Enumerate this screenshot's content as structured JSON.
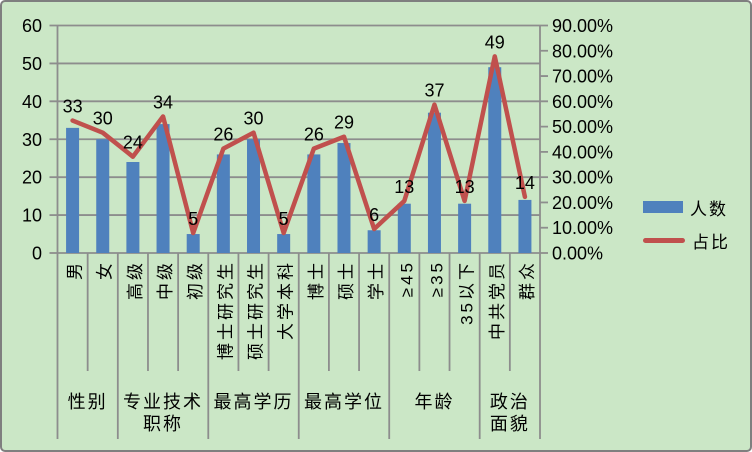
{
  "figure": {
    "colors": {
      "background": "#CBE7C6",
      "border": "#7F7F7F",
      "grid": "#8D8D8D",
      "axis": "#8D8D8D",
      "text": "#000000",
      "bar": "#4F81BD",
      "line": "#C0504D"
    }
  },
  "chart_data": {
    "type": "bar",
    "subtype": "bar+line-combo",
    "title": "",
    "xlabel": "",
    "ylabel": "",
    "grid": true,
    "categories": [
      "男",
      "女",
      "高级",
      "中级",
      "初级",
      "博士研究生",
      "硕士研究生",
      "大学本科",
      "博士",
      "硕士",
      "学士",
      "≥45",
      "≥35",
      "35以下",
      "中共党员",
      "群众"
    ],
    "category_groups": [
      {
        "label_lines": [
          "性别"
        ],
        "start": 0,
        "end": 1
      },
      {
        "label_lines": [
          "专业技术",
          "职称"
        ],
        "start": 2,
        "end": 4
      },
      {
        "label_lines": [
          "最高学历"
        ],
        "start": 5,
        "end": 7
      },
      {
        "label_lines": [
          "最高学位"
        ],
        "start": 8,
        "end": 10
      },
      {
        "label_lines": [
          "年龄"
        ],
        "start": 11,
        "end": 13
      },
      {
        "label_lines": [
          "政治",
          "面貌"
        ],
        "start": 14,
        "end": 15
      }
    ],
    "series": [
      {
        "name": "人数",
        "type": "bar",
        "axis": "left",
        "color": "#4F81BD",
        "values": [
          33,
          30,
          24,
          34,
          5,
          26,
          30,
          5,
          26,
          29,
          6,
          13,
          37,
          13,
          49,
          14
        ]
      },
      {
        "name": "占比",
        "type": "line",
        "axis": "right",
        "color": "#C0504D",
        "values_percent": [
          52.4,
          47.6,
          38.1,
          54.0,
          7.9,
          41.3,
          47.6,
          7.9,
          41.3,
          46.0,
          9.5,
          20.6,
          58.7,
          20.6,
          77.8,
          22.2
        ]
      }
    ],
    "data_labels": [
      "33",
      "30",
      "24",
      "34",
      "5",
      "26",
      "30",
      "5",
      "26",
      "29",
      "6",
      "13",
      "37",
      "13",
      "49",
      "14"
    ],
    "left_axis": {
      "min": 0,
      "max": 60,
      "step": 10,
      "tick_labels": [
        "60",
        "50",
        "40",
        "30",
        "20",
        "10",
        "0"
      ]
    },
    "right_axis": {
      "min": 0,
      "max": 90,
      "step": 10,
      "tick_labels": [
        "90.00%",
        "80.00%",
        "70.00%",
        "60.00%",
        "50.00%",
        "40.00%",
        "30.00%",
        "20.00%",
        "10.00%",
        "0.00%"
      ]
    },
    "legend": [
      {
        "label": "人数",
        "marker": "bar",
        "color": "#4F81BD"
      },
      {
        "label": "占比",
        "marker": "line",
        "color": "#C0504D"
      }
    ]
  }
}
